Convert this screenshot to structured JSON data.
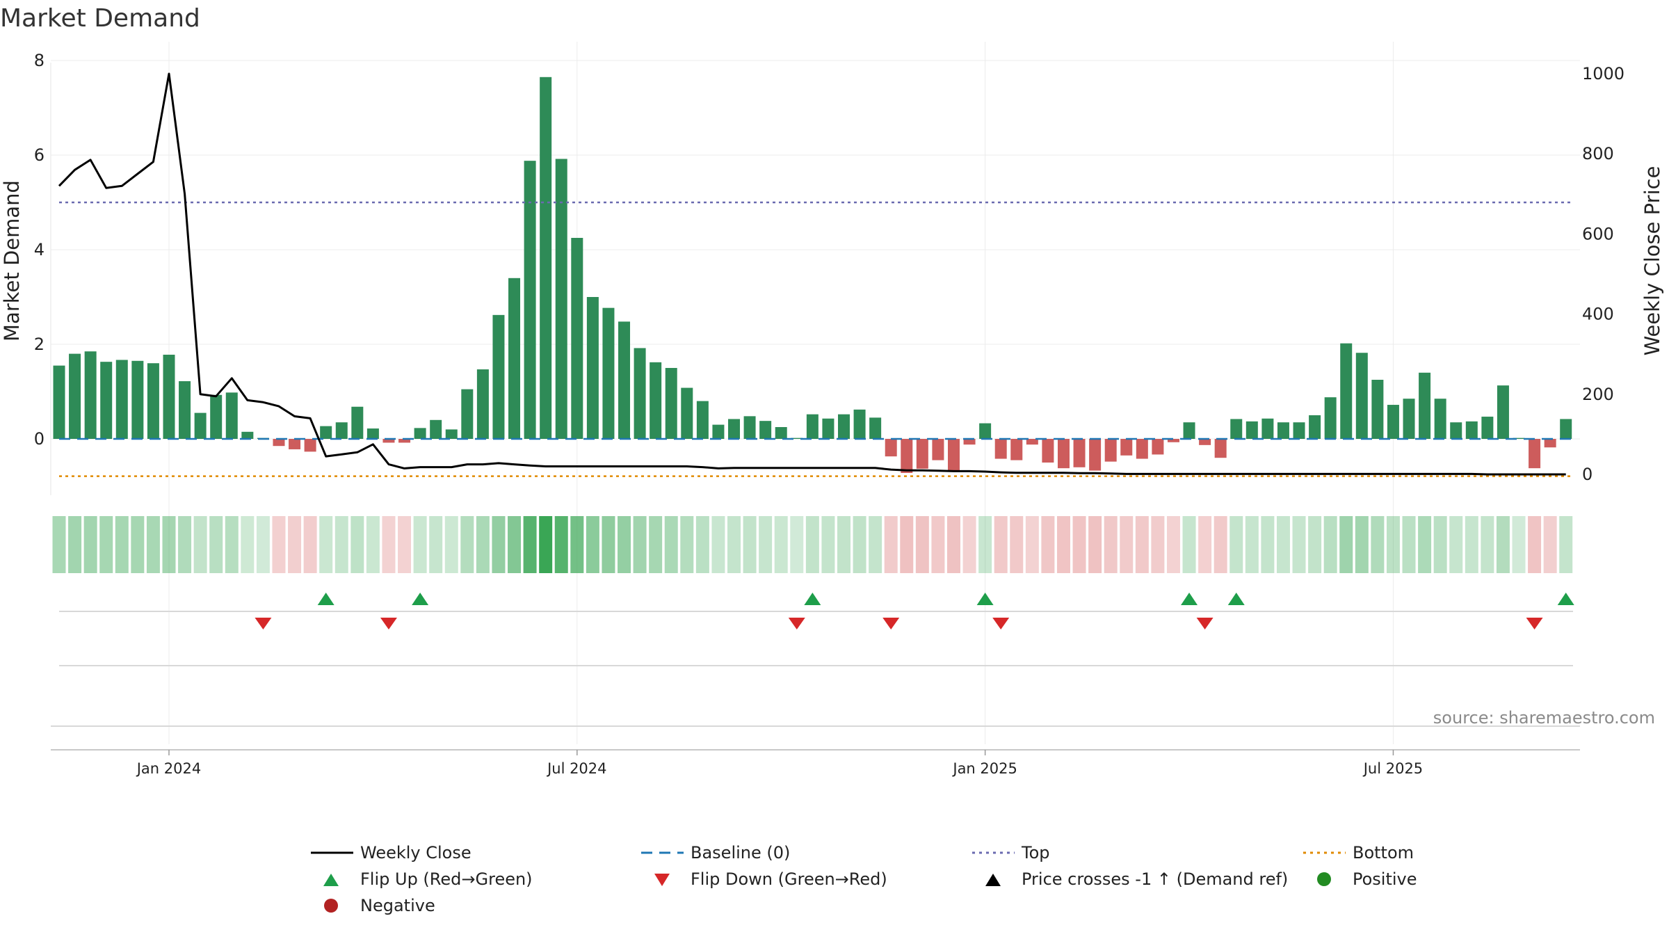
{
  "chart_data": {
    "type": "bar",
    "title": "Market Demand",
    "ylabel_left": "Market Demand",
    "ylabel_right": "Weekly Close Price",
    "ylim_left": [
      -1.2,
      8.2
    ],
    "ylim_right": [
      0,
      1000
    ],
    "yticks_left": [
      "8",
      "6",
      "4",
      "2",
      "0"
    ],
    "yticks_right": [
      "1000",
      "800",
      "600",
      "400",
      "200",
      "0"
    ],
    "x_tick_labels": [
      "Jan 2024",
      "Jul 2024",
      "Jan 2025",
      "Jul 2025"
    ],
    "x_tick_week_index": [
      7,
      33,
      59,
      85
    ],
    "top_level": 5,
    "bottom_level": -0.7,
    "values": [
      1.55,
      1.8,
      1.85,
      1.63,
      1.67,
      1.65,
      1.6,
      1.78,
      1.22,
      0.55,
      0.93,
      0.98,
      0.15,
      0.02,
      -0.15,
      -0.22,
      -0.27,
      0.27,
      0.35,
      0.68,
      0.22,
      -0.08,
      -0.08,
      0.23,
      0.4,
      0.2,
      1.05,
      1.47,
      2.62,
      3.4,
      5.88,
      7.65,
      5.92,
      4.25,
      3.0,
      2.77,
      2.48,
      1.92,
      1.62,
      1.5,
      1.08,
      0.8,
      0.3,
      0.42,
      0.48,
      0.38,
      0.25,
      0.02,
      0.52,
      0.43,
      0.52,
      0.62,
      0.45,
      -0.37,
      -0.72,
      -0.63,
      -0.45,
      -0.68,
      -0.12,
      0.33,
      -0.42,
      -0.45,
      -0.12,
      -0.5,
      -0.62,
      -0.6,
      -0.67,
      -0.48,
      -0.35,
      -0.42,
      -0.33,
      -0.07,
      0.35,
      -0.13,
      -0.4,
      0.42,
      0.37,
      0.43,
      0.35,
      0.35,
      0.5,
      0.88,
      2.02,
      1.82,
      1.25,
      0.72,
      0.85,
      1.4,
      0.85,
      0.35,
      0.37,
      0.47,
      1.13,
      0.02,
      -0.62,
      -0.18,
      0.42
    ],
    "weekly_close": [
      720,
      760,
      785,
      715,
      720,
      750,
      780,
      1000,
      700,
      200,
      195,
      240,
      185,
      180,
      170,
      145,
      140,
      45,
      50,
      55,
      75,
      25,
      15,
      18,
      18,
      18,
      25,
      25,
      28,
      25,
      22,
      20,
      20,
      20,
      20,
      20,
      20,
      20,
      20,
      20,
      20,
      18,
      15,
      16,
      16,
      16,
      16,
      16,
      16,
      16,
      16,
      16,
      16,
      12,
      10,
      10,
      9,
      8,
      8,
      7,
      5,
      4,
      4,
      4,
      4,
      3,
      3,
      2,
      1,
      1,
      1,
      1,
      1,
      1,
      1,
      1,
      1,
      1,
      1,
      1,
      1,
      1,
      1,
      1,
      1,
      1,
      1,
      1,
      1,
      1,
      1,
      0,
      0,
      0,
      0,
      0,
      0
    ],
    "flip_up_weeks": [
      17,
      23,
      48,
      59,
      72,
      75,
      96
    ],
    "flip_down_weeks": [
      13,
      21,
      47,
      53,
      60,
      73,
      94
    ],
    "legend": {
      "weekly_close": "Weekly Close",
      "baseline": "Baseline (0)",
      "top": "Top",
      "bottom": "Bottom",
      "flip_up": "Flip Up (Red→Green)",
      "flip_down": "Flip Down (Green→Red)",
      "price_cross": "Price crosses -1 ↑ (Demand ref)",
      "positive": "Positive",
      "negative": "Negative"
    },
    "source": "source: sharemaestro.com",
    "colors": {
      "positive_bar": "#2e8b57",
      "negative_bar": "#cd5c5c",
      "price_line": "#000000",
      "baseline": "#1f77b4",
      "top": "#6a6ab0",
      "bottom": "#e08a00",
      "flip_up": "#1e9e4a",
      "flip_down": "#d62728",
      "positive_dot": "#228b22",
      "negative_dot": "#b22222"
    }
  }
}
